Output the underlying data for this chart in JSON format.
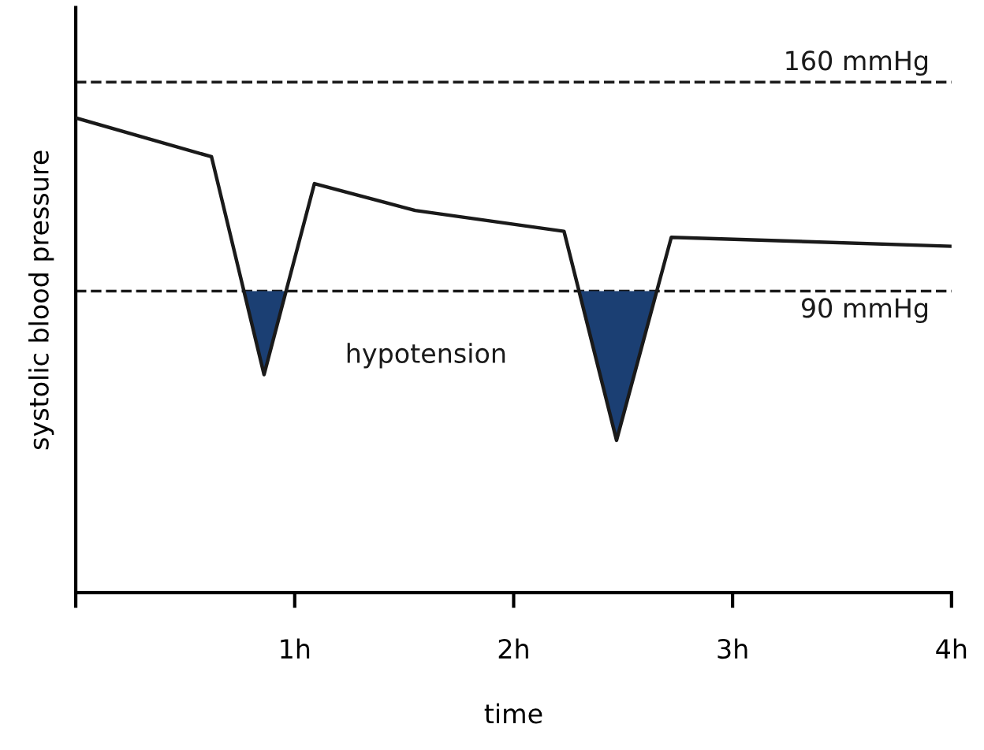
{
  "chart_data": {
    "type": "line",
    "xlabel": "time",
    "ylabel": "systolic blood pressure",
    "xlim": [
      0,
      4
    ],
    "ylim": [
      -11,
      185
    ],
    "xticks": [
      {
        "value": 0,
        "label": null
      },
      {
        "value": 1,
        "label": "1h"
      },
      {
        "value": 2,
        "label": "2h"
      },
      {
        "value": 3,
        "label": "3h"
      },
      {
        "value": 4,
        "label": "4h"
      }
    ],
    "tick_labels": "x",
    "grid": false,
    "marker": "none",
    "line_style": "solid",
    "series": [
      {
        "color": "#1a1a1a",
        "x": [
          0,
          0.62,
          0.86,
          1.09,
          1.55,
          2.23,
          2.47,
          2.72,
          4.0
        ],
        "values": [
          148,
          135,
          62,
          126,
          117,
          110,
          40,
          108,
          105
        ]
      },
      {
        "type": "area",
        "color": "#1b3f73",
        "x": [
          0.77,
          0.86,
          0.96
        ],
        "values": [
          90,
          62,
          90
        ]
      },
      {
        "type": "area",
        "color": "#1b3f73",
        "x": [
          2.3,
          2.47,
          2.65
        ],
        "values": [
          90,
          40,
          90
        ]
      }
    ],
    "ref_lines": [
      {
        "axis": "y",
        "value": 160,
        "label": "160 mmHg",
        "color": "#1a1a1a",
        "line_style": "dashed"
      },
      {
        "axis": "y",
        "value": 90,
        "label": "90 mmHg",
        "color": "#1a1a1a",
        "line_style": "dashed"
      }
    ],
    "annotations": [
      "hypotension"
    ]
  }
}
